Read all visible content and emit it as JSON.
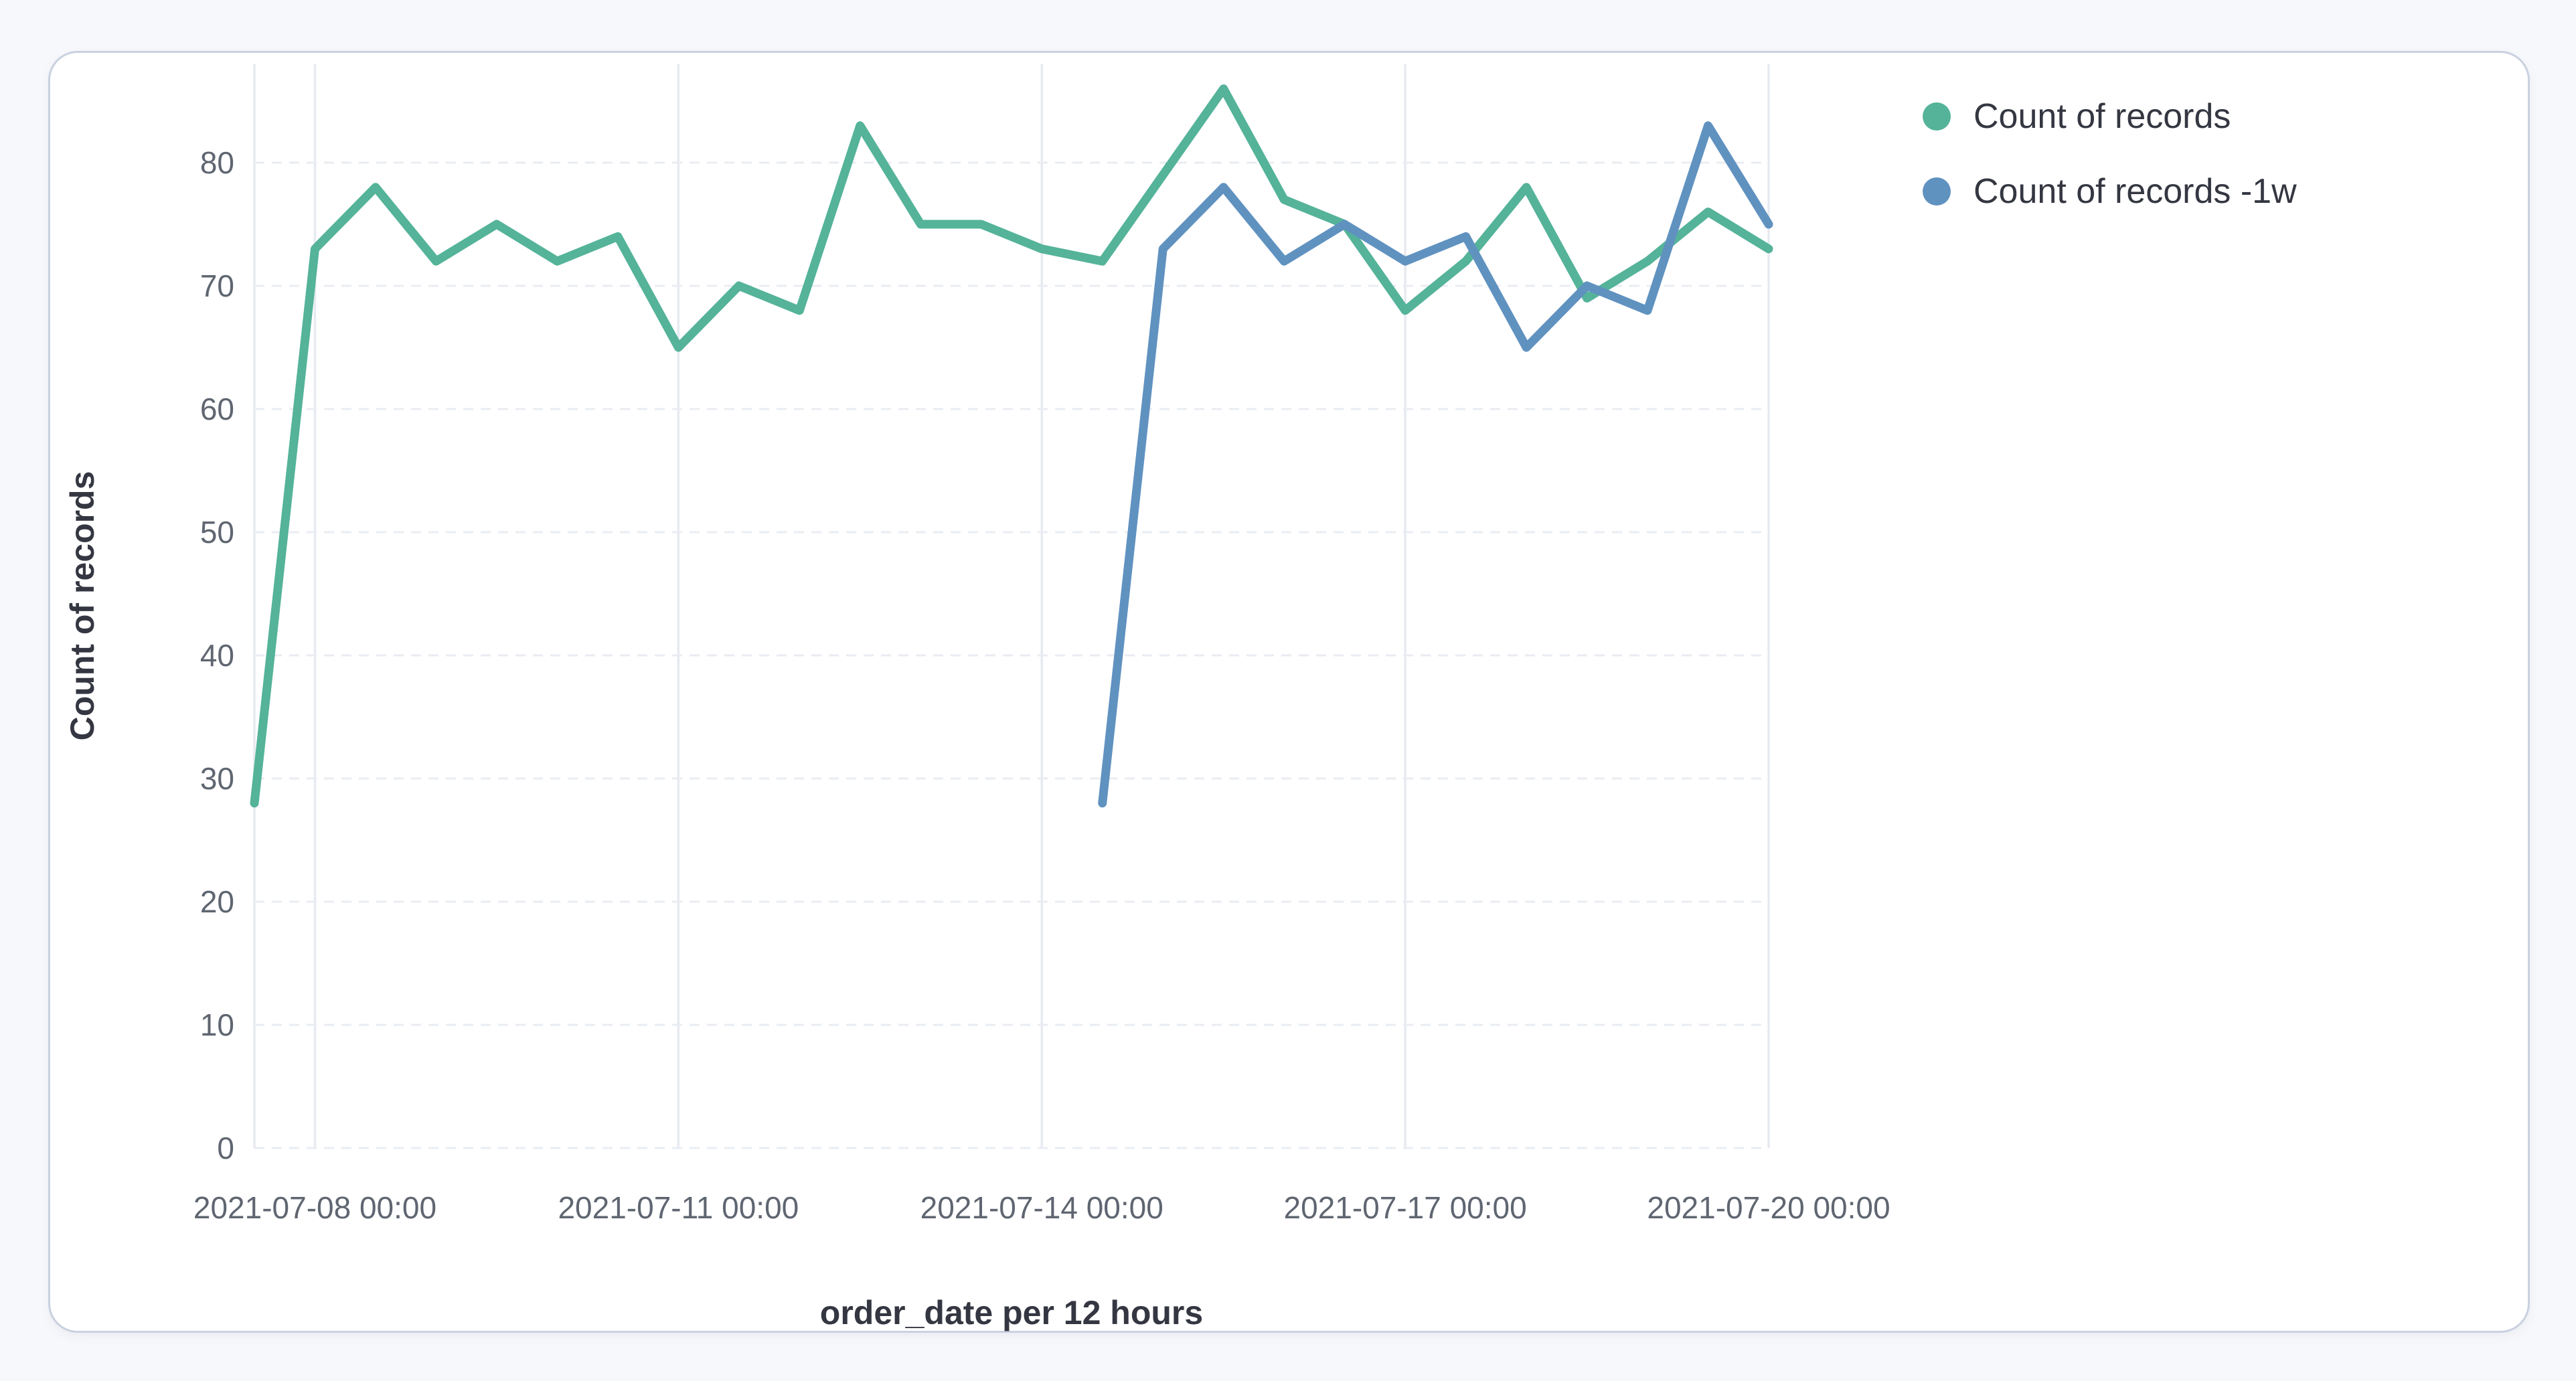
{
  "chart_data": {
    "type": "line",
    "xlabel": "order_date per 12 hours",
    "ylabel": "Count of records",
    "x_start": "2021-07-07 12:00",
    "x_interval": "12 hours",
    "x_ticks": {
      "offsets": [
        1,
        7,
        13,
        19,
        25
      ],
      "labels": [
        "2021-07-08 00:00",
        "2021-07-11 00:00",
        "2021-07-14 00:00",
        "2021-07-17 00:00",
        "2021-07-20 00:00"
      ]
    },
    "y_ticks": [
      0,
      10,
      20,
      30,
      40,
      50,
      60,
      70,
      80
    ],
    "ylim": [
      0,
      88
    ],
    "grid": {
      "vertical": "solid",
      "horizontal": "dashed"
    },
    "legend_position": "right",
    "series": [
      {
        "name": "Count of records",
        "color": "#54B399",
        "start_offset": 0,
        "x_start": "2021-07-07 12:00",
        "values": [
          28,
          73,
          78,
          72,
          75,
          72,
          74,
          65,
          70,
          68,
          83,
          75,
          75,
          73,
          72,
          79,
          86,
          77,
          75,
          68,
          72,
          78,
          69,
          72,
          76,
          73
        ]
      },
      {
        "name": "Count of records -1w",
        "color": "#6092C0",
        "start_offset": 14,
        "x_start": "2021-07-14 12:00",
        "values": [
          28,
          73,
          78,
          72,
          75,
          72,
          74,
          65,
          70,
          68,
          83,
          75
        ]
      }
    ]
  }
}
